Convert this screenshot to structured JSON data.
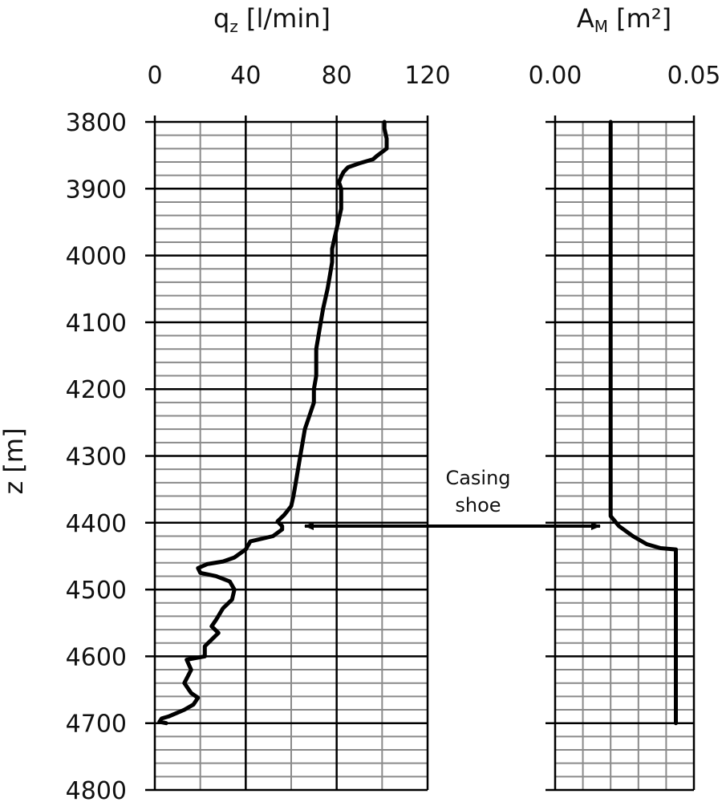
{
  "chart_data": [
    {
      "type": "line",
      "title": "",
      "xlabel_main": "q",
      "xlabel_sub": "z",
      "xlabel_unit": " [l/min]",
      "ylabel": "z [m]",
      "xlim": [
        0,
        120
      ],
      "xticks": [
        0,
        40,
        80,
        120
      ],
      "xtick_labels": [
        "0",
        "40",
        "80",
        "120"
      ],
      "ylim": [
        3800,
        4800
      ],
      "yticks": [
        3800,
        3900,
        4000,
        4100,
        4200,
        4300,
        4400,
        4500,
        4600,
        4700,
        4800
      ],
      "ytick_labels": [
        "3800",
        "3900",
        "4000",
        "4100",
        "4200",
        "4300",
        "4400",
        "4500",
        "4600",
        "4700",
        "4800"
      ],
      "y_inverted": true,
      "grid": true,
      "series": [
        {
          "points": [
            [
              101,
              3800
            ],
            [
              101,
              3810
            ],
            [
              102,
              3825
            ],
            [
              102,
              3840
            ],
            [
              98,
              3850
            ],
            [
              96,
              3856
            ],
            [
              90,
              3862
            ],
            [
              85,
              3868
            ],
            [
              83,
              3875
            ],
            [
              82,
              3882
            ],
            [
              81,
              3890
            ],
            [
              82,
              3900
            ],
            [
              82,
              3915
            ],
            [
              82,
              3930
            ],
            [
              81,
              3945
            ],
            [
              80,
              3960
            ],
            [
              79,
              3975
            ],
            [
              78,
              3990
            ],
            [
              78,
              4010
            ],
            [
              77,
              4030
            ],
            [
              76,
              4050
            ],
            [
              75,
              4065
            ],
            [
              74,
              4080
            ],
            [
              73,
              4100
            ],
            [
              72,
              4120
            ],
            [
              71,
              4140
            ],
            [
              71,
              4160
            ],
            [
              71,
              4180
            ],
            [
              70,
              4200
            ],
            [
              70,
              4220
            ],
            [
              68,
              4240
            ],
            [
              66,
              4260
            ],
            [
              65,
              4280
            ],
            [
              64,
              4300
            ],
            [
              63,
              4320
            ],
            [
              62,
              4340
            ],
            [
              61,
              4360
            ],
            [
              60,
              4375
            ],
            [
              57,
              4388
            ],
            [
              54,
              4398
            ],
            [
              56,
              4405
            ],
            [
              56,
              4410
            ],
            [
              52,
              4420
            ],
            [
              42,
              4428
            ],
            [
              40,
              4440
            ],
            [
              35,
              4452
            ],
            [
              30,
              4458
            ],
            [
              23,
              4462
            ],
            [
              19,
              4468
            ],
            [
              20,
              4475
            ],
            [
              27,
              4480
            ],
            [
              33,
              4488
            ],
            [
              35,
              4500
            ],
            [
              34,
              4515
            ],
            [
              30,
              4528
            ],
            [
              27,
              4545
            ],
            [
              25,
              4555
            ],
            [
              28,
              4565
            ],
            [
              22,
              4585
            ],
            [
              22,
              4600
            ],
            [
              14,
              4605
            ],
            [
              16,
              4620
            ],
            [
              13,
              4640
            ],
            [
              16,
              4655
            ],
            [
              19,
              4662
            ],
            [
              17,
              4672
            ],
            [
              13,
              4680
            ],
            [
              6,
              4690
            ],
            [
              3,
              4693
            ],
            [
              2,
              4698
            ],
            [
              5,
              4700
            ]
          ],
          "color": "#000000"
        }
      ]
    },
    {
      "type": "line",
      "title": "",
      "xlabel_main": "A",
      "xlabel_sub": "M",
      "xlabel_unit": " [m²]",
      "ylabel": "",
      "xlim": [
        0,
        0.05
      ],
      "xticks": [
        0,
        0.05
      ],
      "xtick_labels": [
        "0.00",
        "0.05"
      ],
      "ylim": [
        3800,
        4800
      ],
      "y_inverted": true,
      "grid": true,
      "series": [
        {
          "points": [
            [
              0.02,
              3800
            ],
            [
              0.02,
              4390
            ],
            [
              0.023,
              4405
            ],
            [
              0.028,
              4420
            ],
            [
              0.033,
              4432
            ],
            [
              0.038,
              4438
            ],
            [
              0.0435,
              4440
            ],
            [
              0.0435,
              4700
            ]
          ],
          "color": "#000000"
        }
      ]
    }
  ],
  "annotation": {
    "line1": "Casing",
    "line2": "shoe",
    "z": 4405
  }
}
